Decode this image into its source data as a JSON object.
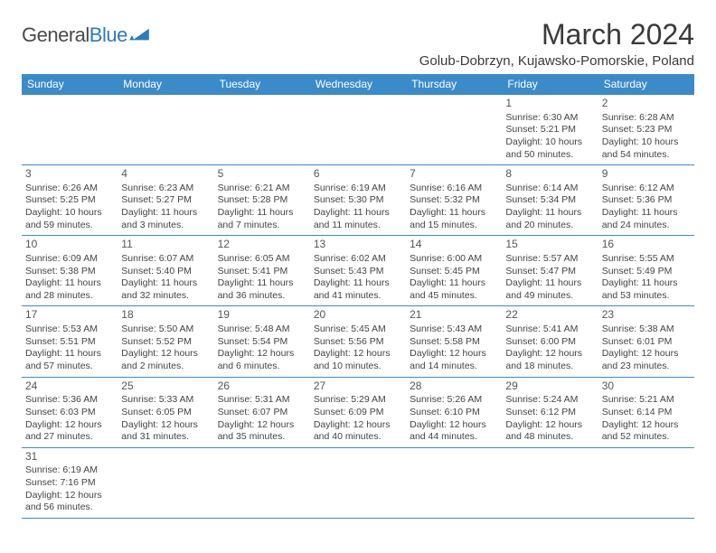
{
  "logo": {
    "text_general": "General",
    "text_blue": "Blue"
  },
  "header": {
    "month_title": "March 2024",
    "location": "Golub-Dobrzyn, Kujawsko-Pomorskie, Poland"
  },
  "colors": {
    "header_bg": "#3b8bc9",
    "header_text": "#ffffff",
    "border": "#3b8bc9",
    "body_text": "#444444",
    "title_text": "#3a3a3a",
    "logo_gray": "#4a4a4a",
    "logo_blue": "#2b7bbf",
    "background": "#ffffff"
  },
  "day_headers": [
    "Sunday",
    "Monday",
    "Tuesday",
    "Wednesday",
    "Thursday",
    "Friday",
    "Saturday"
  ],
  "weeks": [
    [
      null,
      null,
      null,
      null,
      null,
      {
        "n": "1",
        "sr": "Sunrise: 6:30 AM",
        "ss": "Sunset: 5:21 PM",
        "d1": "Daylight: 10 hours",
        "d2": "and 50 minutes."
      },
      {
        "n": "2",
        "sr": "Sunrise: 6:28 AM",
        "ss": "Sunset: 5:23 PM",
        "d1": "Daylight: 10 hours",
        "d2": "and 54 minutes."
      }
    ],
    [
      {
        "n": "3",
        "sr": "Sunrise: 6:26 AM",
        "ss": "Sunset: 5:25 PM",
        "d1": "Daylight: 10 hours",
        "d2": "and 59 minutes."
      },
      {
        "n": "4",
        "sr": "Sunrise: 6:23 AM",
        "ss": "Sunset: 5:27 PM",
        "d1": "Daylight: 11 hours",
        "d2": "and 3 minutes."
      },
      {
        "n": "5",
        "sr": "Sunrise: 6:21 AM",
        "ss": "Sunset: 5:28 PM",
        "d1": "Daylight: 11 hours",
        "d2": "and 7 minutes."
      },
      {
        "n": "6",
        "sr": "Sunrise: 6:19 AM",
        "ss": "Sunset: 5:30 PM",
        "d1": "Daylight: 11 hours",
        "d2": "and 11 minutes."
      },
      {
        "n": "7",
        "sr": "Sunrise: 6:16 AM",
        "ss": "Sunset: 5:32 PM",
        "d1": "Daylight: 11 hours",
        "d2": "and 15 minutes."
      },
      {
        "n": "8",
        "sr": "Sunrise: 6:14 AM",
        "ss": "Sunset: 5:34 PM",
        "d1": "Daylight: 11 hours",
        "d2": "and 20 minutes."
      },
      {
        "n": "9",
        "sr": "Sunrise: 6:12 AM",
        "ss": "Sunset: 5:36 PM",
        "d1": "Daylight: 11 hours",
        "d2": "and 24 minutes."
      }
    ],
    [
      {
        "n": "10",
        "sr": "Sunrise: 6:09 AM",
        "ss": "Sunset: 5:38 PM",
        "d1": "Daylight: 11 hours",
        "d2": "and 28 minutes."
      },
      {
        "n": "11",
        "sr": "Sunrise: 6:07 AM",
        "ss": "Sunset: 5:40 PM",
        "d1": "Daylight: 11 hours",
        "d2": "and 32 minutes."
      },
      {
        "n": "12",
        "sr": "Sunrise: 6:05 AM",
        "ss": "Sunset: 5:41 PM",
        "d1": "Daylight: 11 hours",
        "d2": "and 36 minutes."
      },
      {
        "n": "13",
        "sr": "Sunrise: 6:02 AM",
        "ss": "Sunset: 5:43 PM",
        "d1": "Daylight: 11 hours",
        "d2": "and 41 minutes."
      },
      {
        "n": "14",
        "sr": "Sunrise: 6:00 AM",
        "ss": "Sunset: 5:45 PM",
        "d1": "Daylight: 11 hours",
        "d2": "and 45 minutes."
      },
      {
        "n": "15",
        "sr": "Sunrise: 5:57 AM",
        "ss": "Sunset: 5:47 PM",
        "d1": "Daylight: 11 hours",
        "d2": "and 49 minutes."
      },
      {
        "n": "16",
        "sr": "Sunrise: 5:55 AM",
        "ss": "Sunset: 5:49 PM",
        "d1": "Daylight: 11 hours",
        "d2": "and 53 minutes."
      }
    ],
    [
      {
        "n": "17",
        "sr": "Sunrise: 5:53 AM",
        "ss": "Sunset: 5:51 PM",
        "d1": "Daylight: 11 hours",
        "d2": "and 57 minutes."
      },
      {
        "n": "18",
        "sr": "Sunrise: 5:50 AM",
        "ss": "Sunset: 5:52 PM",
        "d1": "Daylight: 12 hours",
        "d2": "and 2 minutes."
      },
      {
        "n": "19",
        "sr": "Sunrise: 5:48 AM",
        "ss": "Sunset: 5:54 PM",
        "d1": "Daylight: 12 hours",
        "d2": "and 6 minutes."
      },
      {
        "n": "20",
        "sr": "Sunrise: 5:45 AM",
        "ss": "Sunset: 5:56 PM",
        "d1": "Daylight: 12 hours",
        "d2": "and 10 minutes."
      },
      {
        "n": "21",
        "sr": "Sunrise: 5:43 AM",
        "ss": "Sunset: 5:58 PM",
        "d1": "Daylight: 12 hours",
        "d2": "and 14 minutes."
      },
      {
        "n": "22",
        "sr": "Sunrise: 5:41 AM",
        "ss": "Sunset: 6:00 PM",
        "d1": "Daylight: 12 hours",
        "d2": "and 18 minutes."
      },
      {
        "n": "23",
        "sr": "Sunrise: 5:38 AM",
        "ss": "Sunset: 6:01 PM",
        "d1": "Daylight: 12 hours",
        "d2": "and 23 minutes."
      }
    ],
    [
      {
        "n": "24",
        "sr": "Sunrise: 5:36 AM",
        "ss": "Sunset: 6:03 PM",
        "d1": "Daylight: 12 hours",
        "d2": "and 27 minutes."
      },
      {
        "n": "25",
        "sr": "Sunrise: 5:33 AM",
        "ss": "Sunset: 6:05 PM",
        "d1": "Daylight: 12 hours",
        "d2": "and 31 minutes."
      },
      {
        "n": "26",
        "sr": "Sunrise: 5:31 AM",
        "ss": "Sunset: 6:07 PM",
        "d1": "Daylight: 12 hours",
        "d2": "and 35 minutes."
      },
      {
        "n": "27",
        "sr": "Sunrise: 5:29 AM",
        "ss": "Sunset: 6:09 PM",
        "d1": "Daylight: 12 hours",
        "d2": "and 40 minutes."
      },
      {
        "n": "28",
        "sr": "Sunrise: 5:26 AM",
        "ss": "Sunset: 6:10 PM",
        "d1": "Daylight: 12 hours",
        "d2": "and 44 minutes."
      },
      {
        "n": "29",
        "sr": "Sunrise: 5:24 AM",
        "ss": "Sunset: 6:12 PM",
        "d1": "Daylight: 12 hours",
        "d2": "and 48 minutes."
      },
      {
        "n": "30",
        "sr": "Sunrise: 5:21 AM",
        "ss": "Sunset: 6:14 PM",
        "d1": "Daylight: 12 hours",
        "d2": "and 52 minutes."
      }
    ],
    [
      {
        "n": "31",
        "sr": "Sunrise: 6:19 AM",
        "ss": "Sunset: 7:16 PM",
        "d1": "Daylight: 12 hours",
        "d2": "and 56 minutes."
      },
      null,
      null,
      null,
      null,
      null,
      null
    ]
  ]
}
